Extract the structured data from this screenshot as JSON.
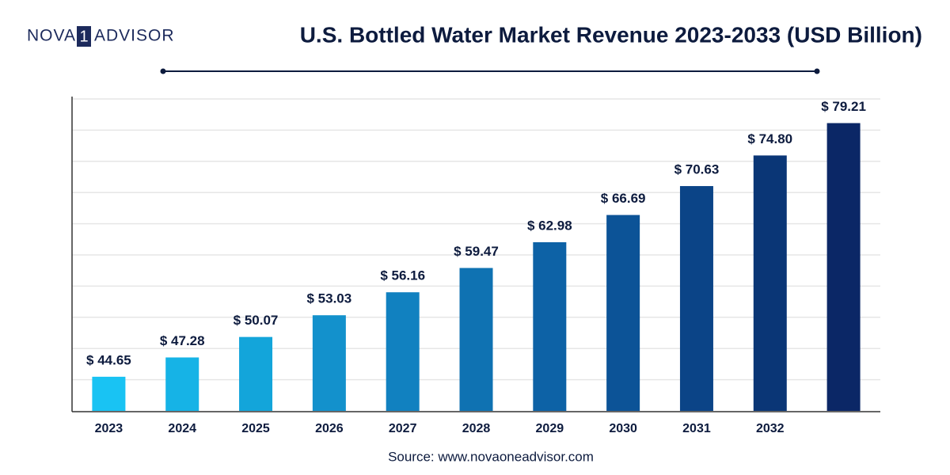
{
  "logo": {
    "left": "NOVA",
    "mark": "1",
    "right": "ADVISOR"
  },
  "chart_data": {
    "type": "bar",
    "title": "U.S. Bottled Water Market Revenue 2023-2033 (USD Billion)",
    "source": "Source: www.novaoneadvisor.com",
    "categories": [
      "2023",
      "2024",
      "2025",
      "2026",
      "2027",
      "2028",
      "2029",
      "2030",
      "2031",
      "2032",
      null
    ],
    "values": [
      44.65,
      47.28,
      50.07,
      53.03,
      56.16,
      59.47,
      62.98,
      66.69,
      70.63,
      74.8,
      79.21
    ],
    "value_labels": [
      "$ 44.65",
      "$ 47.28",
      "$ 50.07",
      "$ 53.03",
      "$ 56.16",
      "$ 59.47",
      "$ 62.98",
      "$ 66.69",
      "$ 70.63",
      "$ 74.80",
      "$ 79.21"
    ],
    "colors": [
      "#19c3f3",
      "#16b3e6",
      "#13a5da",
      "#1391cc",
      "#1181c0",
      "#0f72b2",
      "#0d62a6",
      "#0c5397",
      "#0b4487",
      "#0a3676",
      "#0b2766"
    ],
    "ylim": [
      40,
      82.5
    ],
    "grid": true
  }
}
